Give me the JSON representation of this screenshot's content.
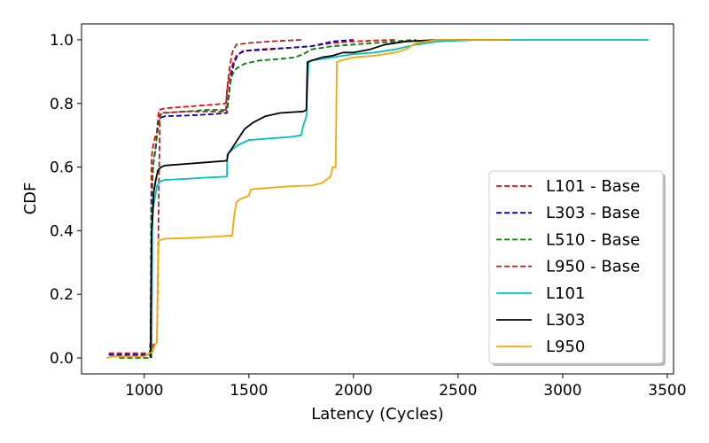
{
  "chart_data": {
    "type": "line",
    "xlabel": "Latency (Cycles)",
    "ylabel": "CDF",
    "xlim": [
      700,
      3530
    ],
    "ylim": [
      -0.05,
      1.05
    ],
    "xticks": [
      1000,
      1500,
      2000,
      2500,
      3000,
      3500
    ],
    "yticks": [
      0.0,
      0.2,
      0.4,
      0.6,
      0.8,
      1.0
    ],
    "ytick_labels": [
      "0.0",
      "0.2",
      "0.4",
      "0.6",
      "0.8",
      "1.0"
    ],
    "grid": false,
    "legend_position": "lower-right",
    "series": [
      {
        "name": "L101 - Base",
        "color": "#ff0000",
        "style": "dashed",
        "points": [
          [
            830,
            0.01
          ],
          [
            1025,
            0.01
          ],
          [
            1030,
            0.05
          ],
          [
            1033,
            0.5
          ],
          [
            1035,
            0.63
          ],
          [
            1040,
            0.66
          ],
          [
            1050,
            0.69
          ],
          [
            1060,
            0.71
          ],
          [
            1065,
            0.75
          ],
          [
            1070,
            0.78
          ],
          [
            1100,
            0.785
          ],
          [
            1200,
            0.79
          ],
          [
            1300,
            0.795
          ],
          [
            1390,
            0.8
          ],
          [
            1395,
            0.83
          ],
          [
            1400,
            0.86
          ],
          [
            1410,
            0.89
          ],
          [
            1420,
            0.92
          ],
          [
            1440,
            0.95
          ],
          [
            1470,
            0.965
          ],
          [
            1550,
            0.97
          ],
          [
            1700,
            0.975
          ],
          [
            1800,
            0.98
          ],
          [
            1900,
            0.99
          ],
          [
            2000,
            0.995
          ],
          [
            2100,
            0.998
          ],
          [
            2200,
            1.0
          ]
        ]
      },
      {
        "name": "L303 - Base",
        "color": "#0000cc",
        "style": "dashed",
        "points": [
          [
            830,
            0.01
          ],
          [
            1025,
            0.01
          ],
          [
            1030,
            0.05
          ],
          [
            1035,
            0.5
          ],
          [
            1040,
            0.58
          ],
          [
            1045,
            0.62
          ],
          [
            1055,
            0.66
          ],
          [
            1060,
            0.7
          ],
          [
            1065,
            0.73
          ],
          [
            1075,
            0.755
          ],
          [
            1100,
            0.76
          ],
          [
            1200,
            0.762
          ],
          [
            1300,
            0.765
          ],
          [
            1395,
            0.77
          ],
          [
            1400,
            0.8
          ],
          [
            1410,
            0.86
          ],
          [
            1420,
            0.9
          ],
          [
            1430,
            0.93
          ],
          [
            1450,
            0.955
          ],
          [
            1480,
            0.965
          ],
          [
            1600,
            0.97
          ],
          [
            1700,
            0.975
          ],
          [
            1800,
            0.98
          ],
          [
            1900,
            0.995
          ],
          [
            2000,
            1.0
          ]
        ]
      },
      {
        "name": "L510 - Base",
        "color": "#008000",
        "style": "dashed",
        "points": [
          [
            880,
            0.0
          ],
          [
            1025,
            0.0
          ],
          [
            1030,
            0.05
          ],
          [
            1035,
            0.45
          ],
          [
            1040,
            0.58
          ],
          [
            1045,
            0.62
          ],
          [
            1055,
            0.67
          ],
          [
            1065,
            0.72
          ],
          [
            1075,
            0.765
          ],
          [
            1100,
            0.77
          ],
          [
            1200,
            0.775
          ],
          [
            1300,
            0.78
          ],
          [
            1395,
            0.78
          ],
          [
            1400,
            0.81
          ],
          [
            1410,
            0.86
          ],
          [
            1420,
            0.89
          ],
          [
            1440,
            0.91
          ],
          [
            1480,
            0.925
          ],
          [
            1550,
            0.935
          ],
          [
            1650,
            0.94
          ],
          [
            1720,
            0.945
          ],
          [
            1760,
            0.955
          ],
          [
            1800,
            0.97
          ],
          [
            1900,
            0.98
          ],
          [
            2000,
            0.985
          ],
          [
            2100,
            0.99
          ],
          [
            2250,
            0.998
          ],
          [
            2300,
            1.0
          ]
        ]
      },
      {
        "name": "L950 - Base",
        "color": "#b22222",
        "style": "dashed",
        "points": [
          [
            830,
            0.015
          ],
          [
            1035,
            0.015
          ],
          [
            1040,
            0.04
          ],
          [
            1060,
            0.05
          ],
          [
            1065,
            0.25
          ],
          [
            1070,
            0.55
          ],
          [
            1075,
            0.75
          ],
          [
            1080,
            0.77
          ],
          [
            1200,
            0.775
          ],
          [
            1390,
            0.775
          ],
          [
            1395,
            0.84
          ],
          [
            1405,
            0.9
          ],
          [
            1420,
            0.96
          ],
          [
            1440,
            0.985
          ],
          [
            1500,
            0.99
          ],
          [
            1600,
            0.995
          ],
          [
            1750,
            1.0
          ]
        ]
      },
      {
        "name": "L101",
        "color": "#00bfbf",
        "style": "solid",
        "points": [
          [
            1035,
            0.0
          ],
          [
            1038,
            0.4
          ],
          [
            1042,
            0.47
          ],
          [
            1050,
            0.5
          ],
          [
            1060,
            0.54
          ],
          [
            1075,
            0.555
          ],
          [
            1100,
            0.56
          ],
          [
            1200,
            0.563
          ],
          [
            1300,
            0.567
          ],
          [
            1395,
            0.57
          ],
          [
            1397,
            0.64
          ],
          [
            1420,
            0.655
          ],
          [
            1450,
            0.67
          ],
          [
            1500,
            0.685
          ],
          [
            1600,
            0.69
          ],
          [
            1700,
            0.695
          ],
          [
            1750,
            0.7
          ],
          [
            1760,
            0.73
          ],
          [
            1775,
            0.76
          ],
          [
            1780,
            0.85
          ],
          [
            1785,
            0.93
          ],
          [
            1800,
            0.935
          ],
          [
            1900,
            0.945
          ],
          [
            2000,
            0.955
          ],
          [
            2100,
            0.96
          ],
          [
            2200,
            0.97
          ],
          [
            2300,
            0.985
          ],
          [
            2400,
            0.995
          ],
          [
            2600,
            1.0
          ],
          [
            3410,
            1.0
          ]
        ]
      },
      {
        "name": "L303",
        "color": "#000000",
        "style": "solid",
        "points": [
          [
            1030,
            0.0
          ],
          [
            1035,
            0.4
          ],
          [
            1040,
            0.45
          ],
          [
            1045,
            0.52
          ],
          [
            1055,
            0.56
          ],
          [
            1065,
            0.59
          ],
          [
            1080,
            0.6
          ],
          [
            1100,
            0.605
          ],
          [
            1200,
            0.61
          ],
          [
            1300,
            0.615
          ],
          [
            1395,
            0.62
          ],
          [
            1400,
            0.64
          ],
          [
            1420,
            0.66
          ],
          [
            1450,
            0.69
          ],
          [
            1480,
            0.72
          ],
          [
            1520,
            0.74
          ],
          [
            1580,
            0.76
          ],
          [
            1650,
            0.77
          ],
          [
            1760,
            0.775
          ],
          [
            1775,
            0.78
          ],
          [
            1780,
            0.93
          ],
          [
            1800,
            0.935
          ],
          [
            1850,
            0.945
          ],
          [
            1900,
            0.95
          ],
          [
            1950,
            0.96
          ],
          [
            2000,
            0.96
          ],
          [
            2080,
            0.97
          ],
          [
            2150,
            0.985
          ],
          [
            2250,
            0.995
          ],
          [
            2400,
            1.0
          ],
          [
            2750,
            1.0
          ]
        ]
      },
      {
        "name": "L950",
        "color": "#ffa500",
        "style": "solid",
        "points": [
          [
            820,
            0.0
          ],
          [
            850,
            0.005
          ],
          [
            900,
            0.005
          ],
          [
            1000,
            0.005
          ],
          [
            1040,
            0.02
          ],
          [
            1050,
            0.04
          ],
          [
            1060,
            0.05
          ],
          [
            1065,
            0.3
          ],
          [
            1070,
            0.37
          ],
          [
            1100,
            0.375
          ],
          [
            1200,
            0.377
          ],
          [
            1300,
            0.38
          ],
          [
            1420,
            0.385
          ],
          [
            1430,
            0.45
          ],
          [
            1440,
            0.49
          ],
          [
            1460,
            0.5
          ],
          [
            1500,
            0.51
          ],
          [
            1510,
            0.53
          ],
          [
            1600,
            0.535
          ],
          [
            1700,
            0.54
          ],
          [
            1800,
            0.542
          ],
          [
            1850,
            0.55
          ],
          [
            1890,
            0.57
          ],
          [
            1900,
            0.6
          ],
          [
            1915,
            0.6
          ],
          [
            1920,
            0.93
          ],
          [
            1940,
            0.935
          ],
          [
            2000,
            0.945
          ],
          [
            2100,
            0.95
          ],
          [
            2200,
            0.96
          ],
          [
            2250,
            0.97
          ],
          [
            2300,
            0.99
          ],
          [
            2400,
            1.0
          ],
          [
            2750,
            1.0
          ]
        ]
      }
    ]
  }
}
